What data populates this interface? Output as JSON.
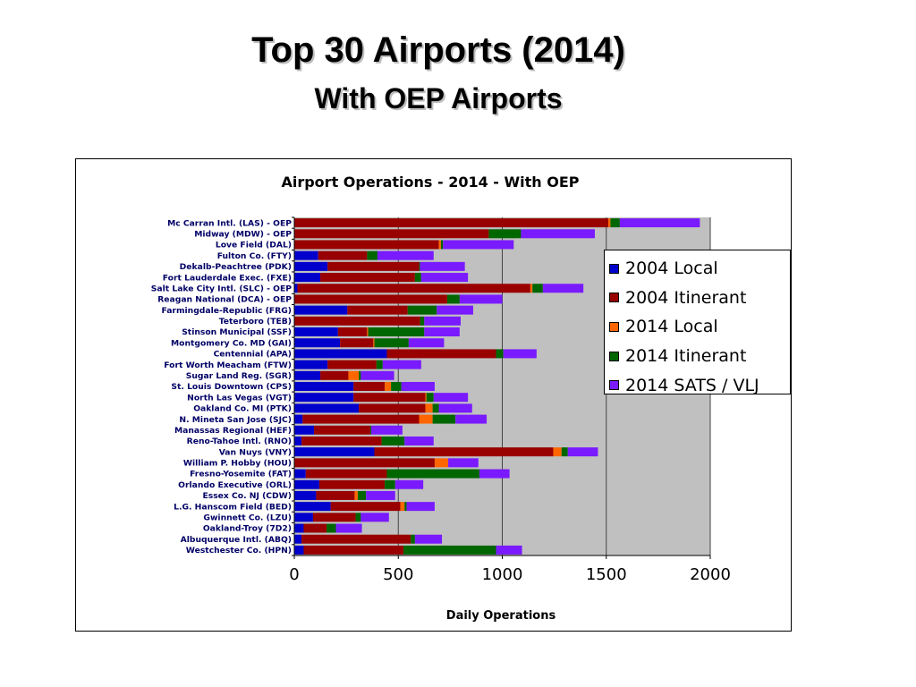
{
  "slide": {
    "title": "Top 30 Airports (2014)",
    "subtitle": "With OEP Airports"
  },
  "chart_data": {
    "type": "bar",
    "orientation": "horizontal",
    "stacked": true,
    "title": "Airport Operations - 2014 - With OEP",
    "xlabel": "Daily Operations",
    "ylabel": "",
    "xlim": [
      0,
      2000
    ],
    "xticks": [
      0,
      500,
      1000,
      1500,
      2000
    ],
    "grid": true,
    "legend_position": "right",
    "plot_background": "#c0c0c0",
    "categories": [
      "Mc Carran Intl. (LAS) - OEP",
      "Midway (MDW) - OEP",
      "Love Field (DAL)",
      "Fulton Co. (FTY)",
      "Dekalb-Peachtree (PDK)",
      "Fort Lauderdale Exec. (FXE)",
      "Salt Lake City Intl. (SLC) - OEP",
      "Reagan National (DCA) - OEP",
      "Farmingdale-Republic (FRG)",
      "Teterboro (TEB)",
      "Stinson Municipal (SSF)",
      "Montgomery Co. MD (GAI)",
      "Centennial (APA)",
      "Fort Worth Meacham (FTW)",
      "Sugar Land Reg. (SGR)",
      "St. Louis Downtown (CPS)",
      "North Las Vegas (VGT)",
      "Oakland Co. MI (PTK)",
      "N. Mineta San Jose (SJC)",
      "Manassas Regional (HEF)",
      "Reno-Tahoe Intl. (RNO)",
      "Van Nuys (VNY)",
      "William P. Hobby (HOU)",
      "Fresno-Yosemite (FAT)",
      "Orlando Executive (ORL)",
      "Essex Co. NJ (CDW)",
      "L.G. Hanscom Field (BED)",
      "Gwinnett Co. (LZU)",
      "Oakland-Troy (7D2)",
      "Albuquerque Intl. (ABQ)",
      "Westchester Co. (HPN)"
    ],
    "series": [
      {
        "name": "2004 Local",
        "color": "#0000cc",
        "values": [
          0,
          0,
          0,
          115,
          160,
          125,
          15,
          0,
          255,
          0,
          210,
          220,
          445,
          160,
          125,
          285,
          285,
          310,
          40,
          95,
          35,
          385,
          0,
          55,
          120,
          105,
          175,
          90,
          45,
          35,
          45
        ]
      },
      {
        "name": "2004 Itinerant",
        "color": "#990000",
        "values": [
          1510,
          935,
          695,
          235,
          440,
          455,
          1120,
          735,
          290,
          605,
          140,
          160,
          525,
          235,
          135,
          150,
          345,
          320,
          560,
          270,
          385,
          860,
          675,
          390,
          315,
          185,
          335,
          205,
          110,
          525,
          480
        ]
      },
      {
        "name": "2014 Local",
        "color": "#ff6600",
        "values": [
          10,
          0,
          10,
          0,
          0,
          0,
          10,
          0,
          0,
          0,
          5,
          5,
          0,
          0,
          50,
          30,
          5,
          35,
          65,
          0,
          0,
          40,
          65,
          0,
          0,
          15,
          20,
          0,
          0,
          0,
          0
        ]
      },
      {
        "name": "2014 Itinerant",
        "color": "#006600",
        "values": [
          45,
          155,
          10,
          50,
          5,
          30,
          50,
          60,
          140,
          20,
          270,
          165,
          35,
          30,
          10,
          50,
          35,
          30,
          110,
          5,
          110,
          30,
          0,
          445,
          50,
          40,
          10,
          25,
          45,
          20,
          445
        ]
      },
      {
        "name": "2014 SATS / VLJ",
        "color": "#7a1aff",
        "values": [
          385,
          355,
          340,
          270,
          215,
          225,
          195,
          205,
          175,
          175,
          170,
          170,
          160,
          185,
          160,
          160,
          165,
          160,
          150,
          150,
          140,
          145,
          145,
          145,
          135,
          140,
          135,
          135,
          125,
          130,
          125
        ]
      }
    ]
  }
}
